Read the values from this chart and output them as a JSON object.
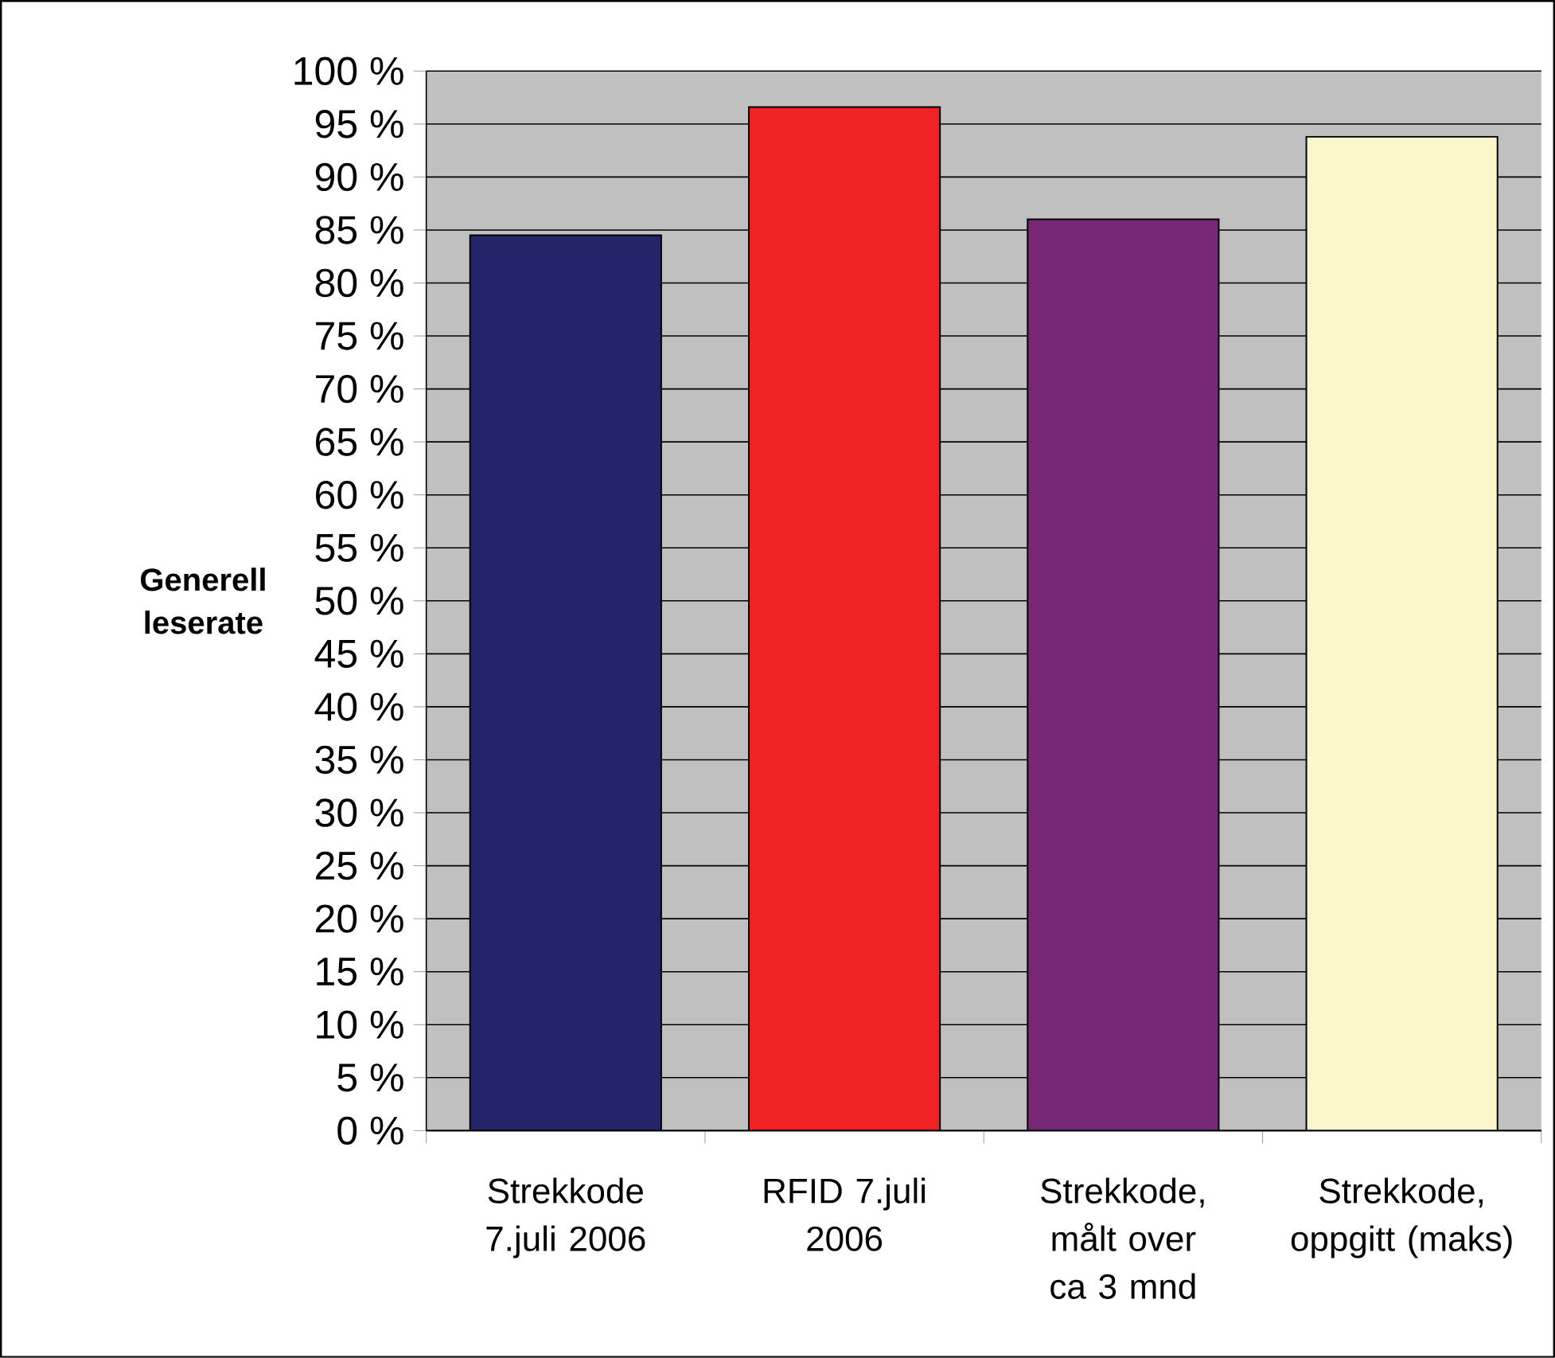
{
  "chart_data": {
    "type": "bar",
    "ylabel": "Generell leserate",
    "categories": [
      "Strekkode 7.juli 2006",
      "RFID 7.juli 2006",
      "Strekkode, målt over ca 3 mnd",
      "Strekkode, oppgitt (maks)"
    ],
    "values": [
      84.5,
      96.6,
      86.0,
      93.8
    ],
    "colors": [
      "#24246b",
      "#ee2222",
      "#772877",
      "#fbf7cc"
    ],
    "ylim": [
      0,
      100
    ],
    "yticks": [
      {
        "value": 0,
        "label": "0 %"
      },
      {
        "value": 5,
        "label": "5 %"
      },
      {
        "value": 10,
        "label": "10 %"
      },
      {
        "value": 15,
        "label": "15 %"
      },
      {
        "value": 20,
        "label": "20 %"
      },
      {
        "value": 25,
        "label": "25 %"
      },
      {
        "value": 30,
        "label": "30 %"
      },
      {
        "value": 35,
        "label": "35 %"
      },
      {
        "value": 40,
        "label": "40 %"
      },
      {
        "value": 45,
        "label": "45 %"
      },
      {
        "value": 50,
        "label": "50 %"
      },
      {
        "value": 55,
        "label": "55 %"
      },
      {
        "value": 60,
        "label": "60 %"
      },
      {
        "value": 65,
        "label": "65 %"
      },
      {
        "value": 70,
        "label": "70 %"
      },
      {
        "value": 75,
        "label": "75 %"
      },
      {
        "value": 80,
        "label": "80 %"
      },
      {
        "value": 85,
        "label": "85 %"
      },
      {
        "value": 90,
        "label": "90 %"
      },
      {
        "value": 95,
        "label": "95 %"
      },
      {
        "value": 100,
        "label": "100 %"
      }
    ],
    "grid": "y"
  }
}
